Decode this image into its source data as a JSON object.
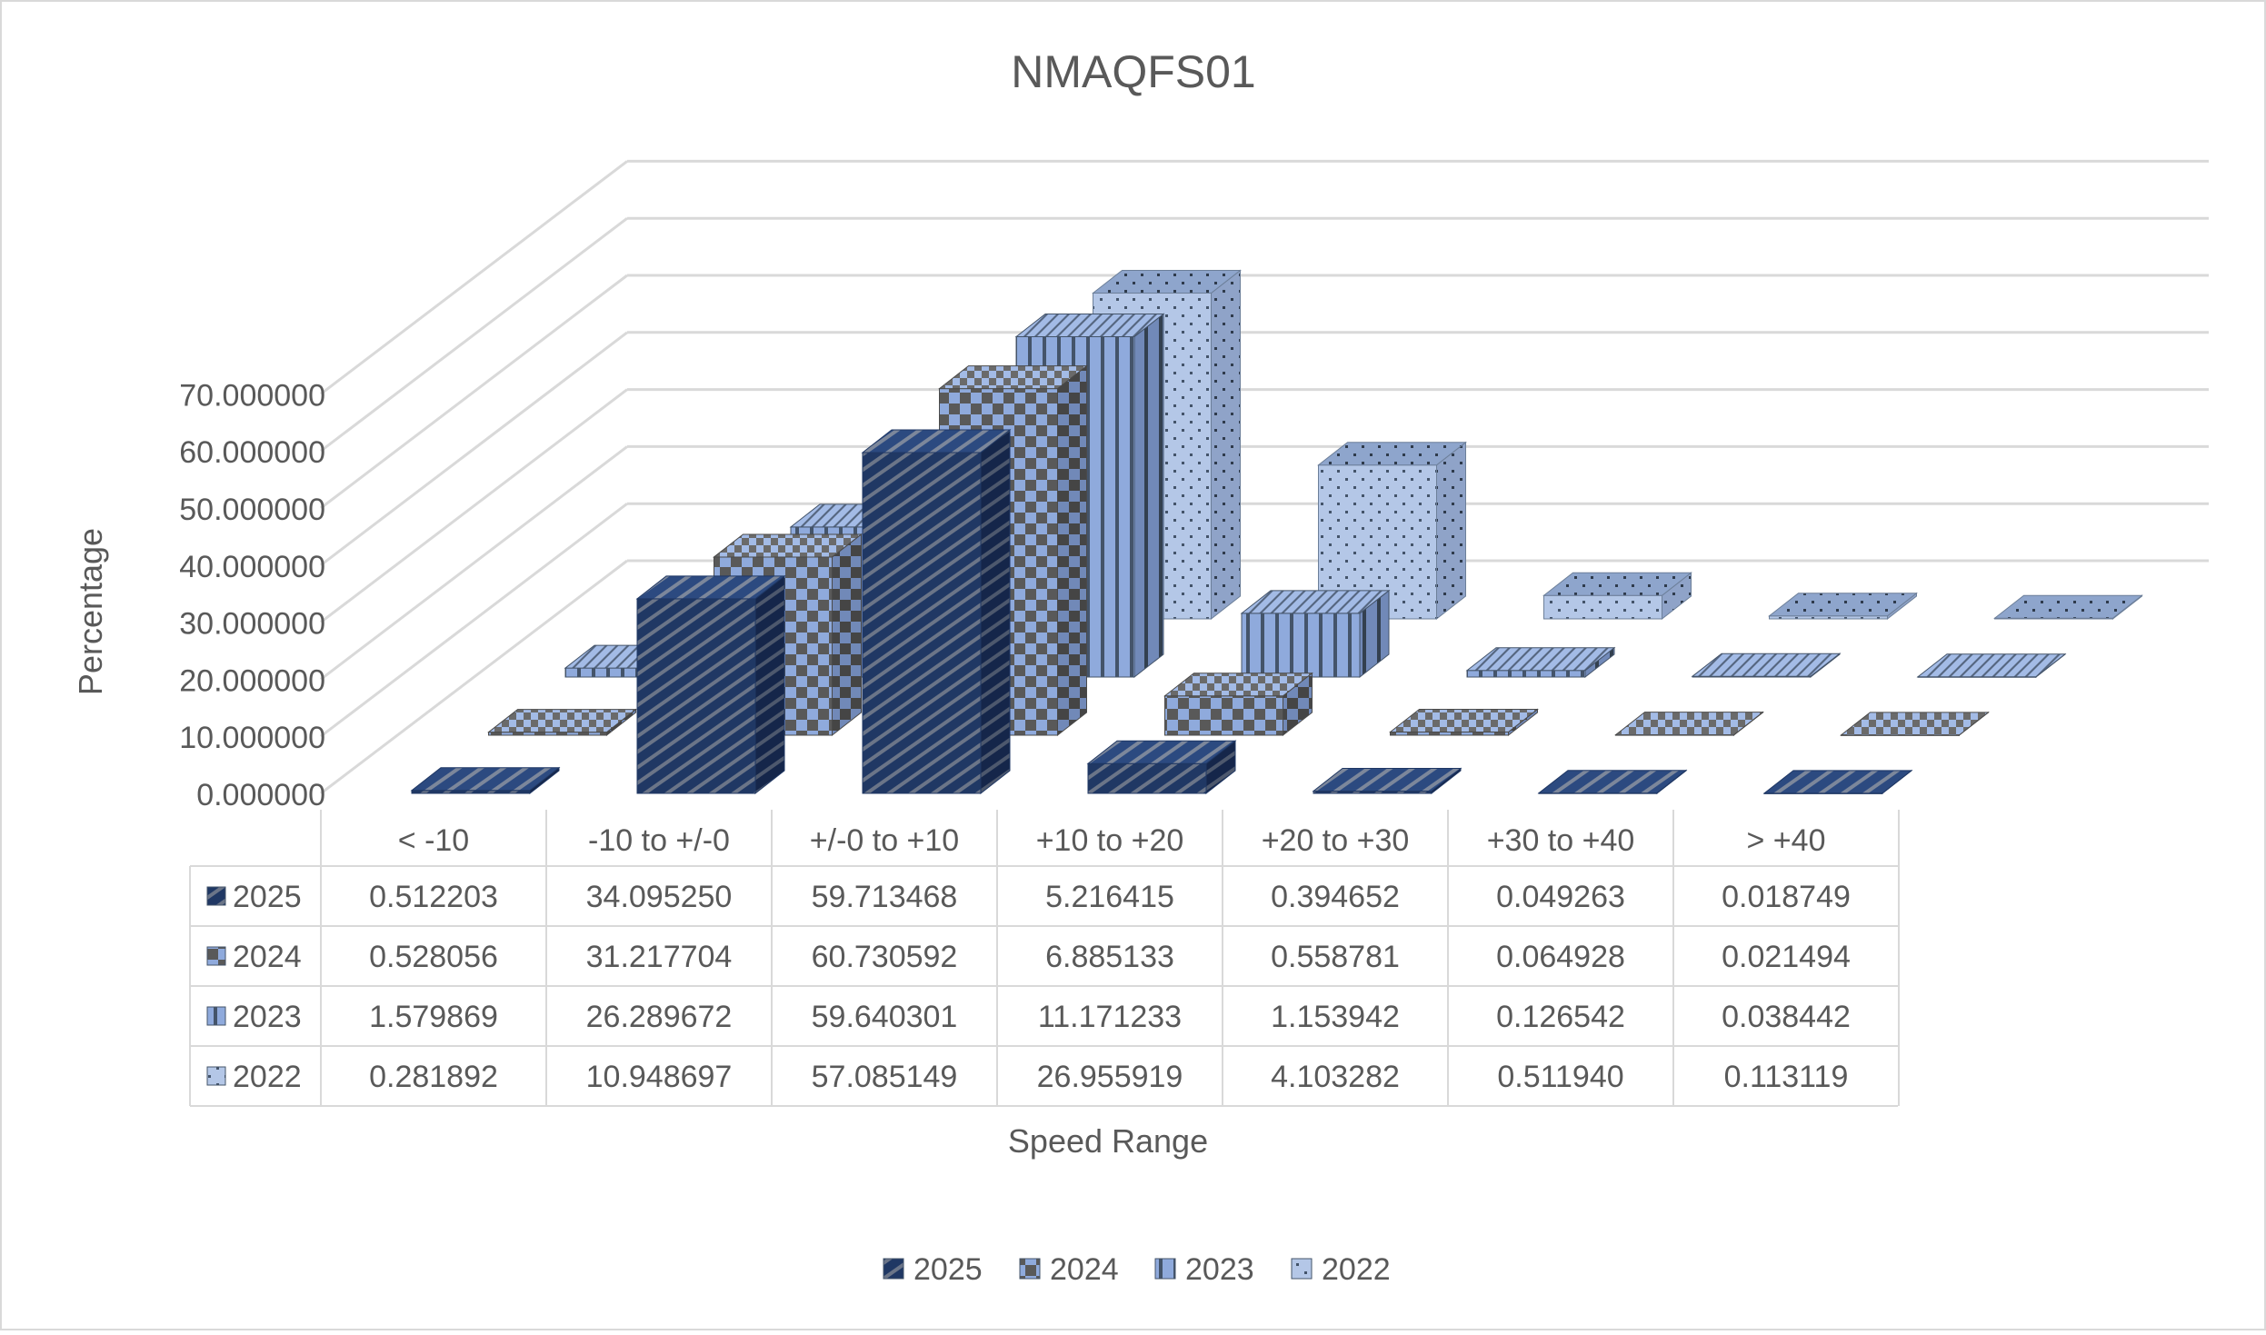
{
  "chart_data": {
    "type": "bar",
    "title": "NMAQFS01",
    "xlabel": "Speed Range",
    "ylabel": "Percentage",
    "ylim": [
      0,
      70
    ],
    "y_tick_labels": [
      "0.000000",
      "10.000000",
      "20.000000",
      "30.000000",
      "40.000000",
      "50.000000",
      "60.000000",
      "70.000000"
    ],
    "y_tick_values": [
      0,
      10,
      20,
      30,
      40,
      50,
      60,
      70
    ],
    "grid": true,
    "legend_position": "bottom",
    "categories": [
      "< -10",
      "-10 to +/-0",
      "+/-0 to +10",
      "+10 to +20",
      "+20 to +30",
      "+30 to +40",
      "> +40"
    ],
    "series": [
      {
        "name": "2025",
        "values": [
          0.512203,
          34.09525,
          59.713468,
          5.216415,
          0.394652,
          0.049263,
          0.018749
        ],
        "value_labels": [
          "0.512203",
          "34.095250",
          "59.713468",
          "5.216415",
          "0.394652",
          "0.049263",
          "0.018749"
        ],
        "color": "#203864",
        "pattern": "diagonal-stripes"
      },
      {
        "name": "2024",
        "values": [
          0.528056,
          31.217704,
          60.730592,
          6.885133,
          0.558781,
          0.064928,
          0.021494
        ],
        "value_labels": [
          "0.528056",
          "31.217704",
          "60.730592",
          "6.885133",
          "0.558781",
          "0.064928",
          "0.021494"
        ],
        "color": "#8faadc",
        "pattern": "checkerboard"
      },
      {
        "name": "2023",
        "values": [
          1.579869,
          26.289672,
          59.640301,
          11.171233,
          1.153942,
          0.126542,
          0.038442
        ],
        "value_labels": [
          "1.579869",
          "26.289672",
          "59.640301",
          "11.171233",
          "1.153942",
          "0.126542",
          "0.038442"
        ],
        "color": "#8faadc",
        "pattern": "vertical-stripes"
      },
      {
        "name": "2022",
        "values": [
          0.281892,
          10.948697,
          57.085149,
          26.955919,
          4.103282,
          0.51194,
          0.113119
        ],
        "value_labels": [
          "0.281892",
          "10.948697",
          "57.085149",
          "26.955919",
          "4.103282",
          "0.511940",
          "0.113119"
        ],
        "color": "#b4c7e7",
        "pattern": "dots"
      }
    ],
    "data_table": true
  }
}
